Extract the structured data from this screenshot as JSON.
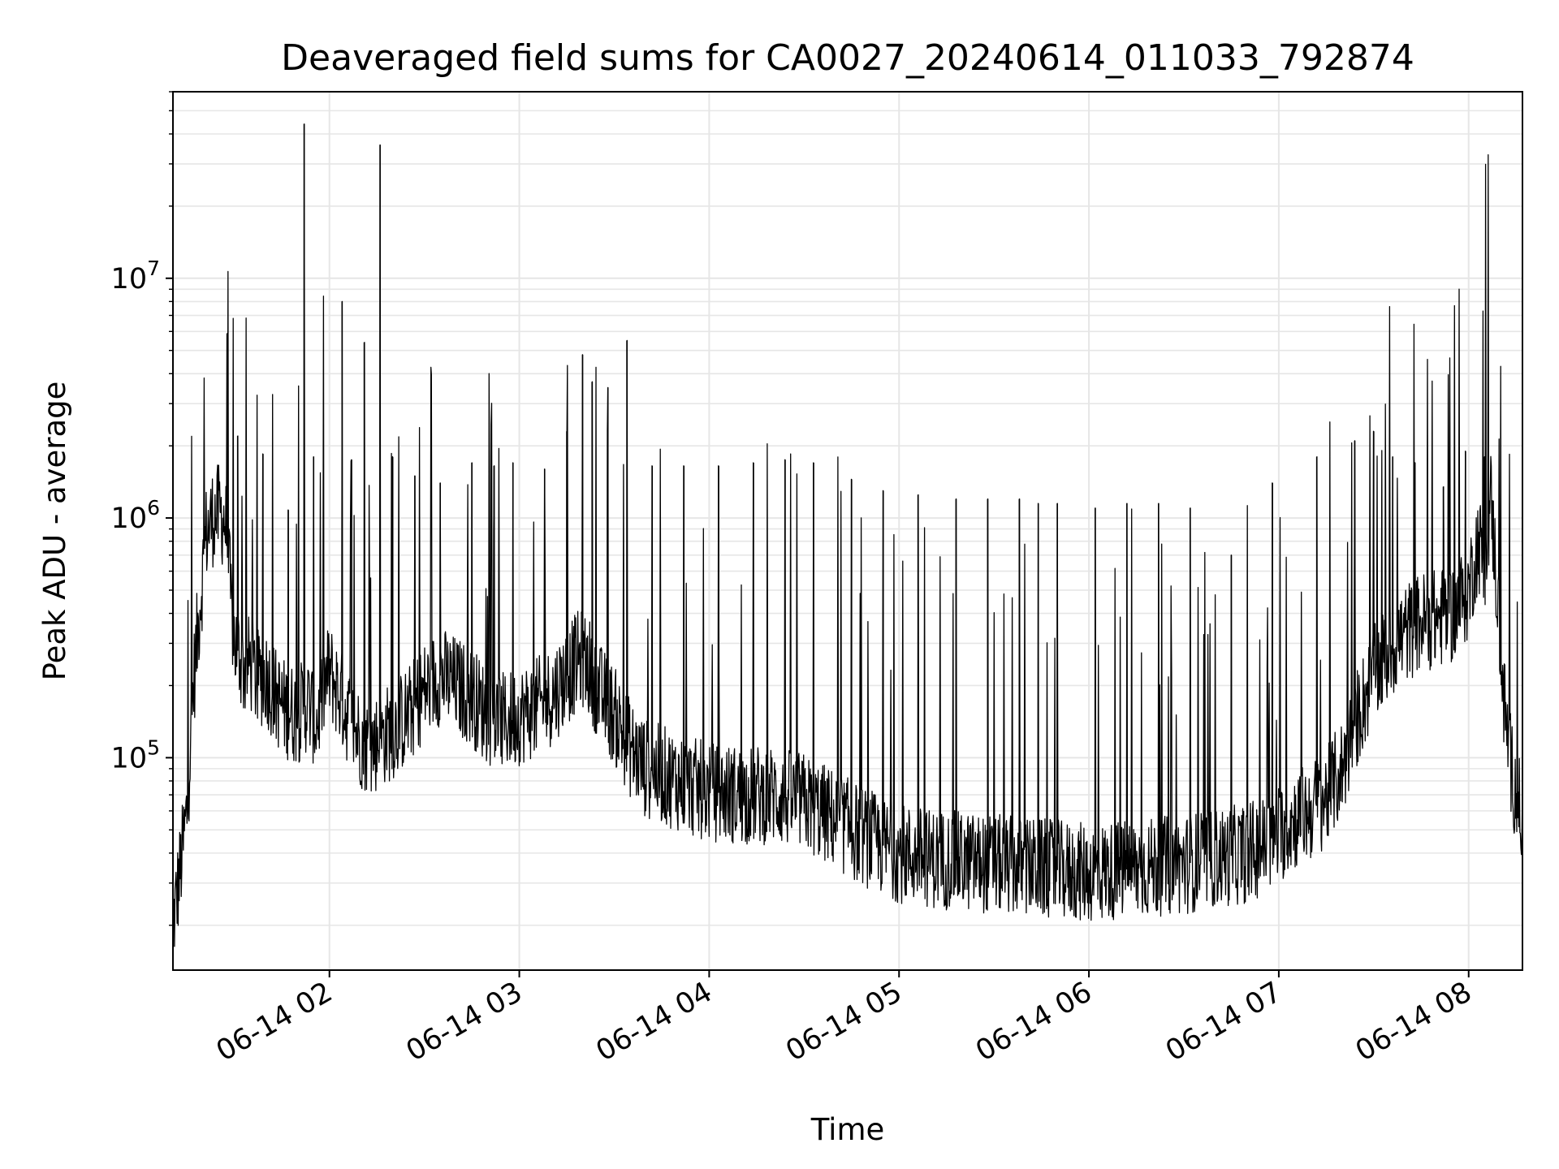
{
  "chart_data": {
    "type": "line",
    "title": "Deaveraged field sums for CA0027_20240614_011033_792874",
    "xlabel": "Time",
    "ylabel": "Peak ADU - average",
    "yscale": "log",
    "xlim": [
      "2024-06-14 01:10:33",
      "2024-06-14 08:17:00"
    ],
    "ylim": [
      13000,
      60000000
    ],
    "grid": true,
    "legend": "none",
    "line_color": "#000000",
    "grid_color": "#e6e6e6",
    "xticks": [
      {
        "value": "2024-06-14 02:00",
        "label": "06-14 02"
      },
      {
        "value": "2024-06-14 03:00",
        "label": "06-14 03"
      },
      {
        "value": "2024-06-14 04:00",
        "label": "06-14 04"
      },
      {
        "value": "2024-06-14 05:00",
        "label": "06-14 05"
      },
      {
        "value": "2024-06-14 06:00",
        "label": "06-14 06"
      },
      {
        "value": "2024-06-14 07:00",
        "label": "06-14 07"
      },
      {
        "value": "2024-06-14 08:00",
        "label": "06-14 08"
      }
    ],
    "yticks": [
      {
        "value": 100000,
        "base": "10",
        "exp": "5"
      },
      {
        "value": 1000000,
        "base": "10",
        "exp": "6"
      },
      {
        "value": 10000000,
        "base": "10",
        "exp": "7"
      }
    ],
    "series": [
      {
        "x": [
          "2024-06-14 01:10:33",
          "2024-06-14 01:13",
          "2024-06-14 01:15",
          "2024-06-14 01:17",
          "2024-06-14 01:19",
          "2024-06-14 01:21",
          "2024-06-14 01:23",
          "2024-06-14 01:25",
          "2024-06-14 01:27",
          "2024-06-14 01:28",
          "2024-06-14 01:29",
          "2024-06-14 01:30",
          "2024-06-14 01:32",
          "2024-06-14 01:33",
          "2024-06-14 01:35",
          "2024-06-14 01:37",
          "2024-06-14 01:40",
          "2024-06-14 01:43",
          "2024-06-14 01:46",
          "2024-06-14 01:50",
          "2024-06-14 01:53",
          "2024-06-14 01:56",
          "2024-06-14 01:58",
          "2024-06-14 02:00",
          "2024-06-14 02:02",
          "2024-06-14 02:05",
          "2024-06-14 02:08",
          "2024-06-14 02:10",
          "2024-06-14 02:13",
          "2024-06-14 02:16",
          "2024-06-14 02:20",
          "2024-06-14 02:25",
          "2024-06-14 02:30",
          "2024-06-14 02:35",
          "2024-06-14 02:40",
          "2024-06-14 02:45",
          "2024-06-14 02:50",
          "2024-06-14 02:55",
          "2024-06-14 03:00",
          "2024-06-14 03:05",
          "2024-06-14 03:10",
          "2024-06-14 03:15",
          "2024-06-14 03:18",
          "2024-06-14 03:20",
          "2024-06-14 03:22",
          "2024-06-14 03:25",
          "2024-06-14 03:30",
          "2024-06-14 03:35",
          "2024-06-14 03:40",
          "2024-06-14 03:45",
          "2024-06-14 03:50",
          "2024-06-14 03:55",
          "2024-06-14 04:00",
          "2024-06-14 04:10",
          "2024-06-14 04:20",
          "2024-06-14 04:30",
          "2024-06-14 04:35",
          "2024-06-14 04:40",
          "2024-06-14 04:45",
          "2024-06-14 04:50",
          "2024-06-14 04:55",
          "2024-06-14 05:00",
          "2024-06-14 05:10",
          "2024-06-14 05:20",
          "2024-06-14 05:30",
          "2024-06-14 05:40",
          "2024-06-14 05:50",
          "2024-06-14 06:00",
          "2024-06-14 06:10",
          "2024-06-14 06:20",
          "2024-06-14 06:30",
          "2024-06-14 06:40",
          "2024-06-14 06:50",
          "2024-06-14 06:55",
          "2024-06-14 07:00",
          "2024-06-14 07:05",
          "2024-06-14 07:10",
          "2024-06-14 07:15",
          "2024-06-14 07:20",
          "2024-06-14 07:25",
          "2024-06-14 07:30",
          "2024-06-14 07:35",
          "2024-06-14 07:40",
          "2024-06-14 07:45",
          "2024-06-14 07:50",
          "2024-06-14 07:55",
          "2024-06-14 08:00",
          "2024-06-14 08:03",
          "2024-06-14 08:05",
          "2024-06-14 08:07",
          "2024-06-14 08:09",
          "2024-06-14 08:11",
          "2024-06-14 08:13",
          "2024-06-14 08:15",
          "2024-06-14 08:17"
        ],
        "values": [
          20000,
          35000,
          60000,
          200000,
          420000,
          850000,
          1000000,
          1050000,
          980000,
          700000,
          420000,
          300000,
          260000,
          230000,
          250000,
          210000,
          220000,
          180000,
          160000,
          150000,
          170000,
          140000,
          190000,
          230000,
          200000,
          160000,
          130000,
          120000,
          110000,
          120000,
          130000,
          150000,
          190000,
          220000,
          200000,
          180000,
          150000,
          140000,
          150000,
          160000,
          180000,
          220000,
          250000,
          260000,
          240000,
          190000,
          150000,
          110000,
          90000,
          85000,
          80000,
          75000,
          72000,
          70000,
          70000,
          65000,
          60000,
          55000,
          50000,
          46000,
          43000,
          40000,
          38000,
          37000,
          36000,
          35000,
          34000,
          33000,
          34000,
          35000,
          36000,
          38000,
          40000,
          43000,
          48000,
          55000,
          60000,
          68000,
          90000,
          150000,
          220000,
          280000,
          330000,
          370000,
          380000,
          400000,
          500000,
          800000,
          650000,
          1200000,
          500000,
          180000,
          100000,
          70000,
          55000
        ]
      },
      {
        "name": "",
        "kind": "spikes",
        "x": [
          "2024-06-14 01:31",
          "2024-06-14 01:39",
          "2024-06-14 01:47",
          "2024-06-14 01:52",
          "2024-06-14 01:55",
          "2024-06-14 02:04",
          "2024-06-14 02:07",
          "2024-06-14 02:11",
          "2024-06-14 02:16",
          "2024-06-14 02:20",
          "2024-06-14 02:27",
          "2024-06-14 02:35",
          "2024-06-14 02:45",
          "2024-06-14 02:52",
          "2024-06-14 02:58",
          "2024-06-14 03:08",
          "2024-06-14 03:15",
          "2024-06-14 03:20",
          "2024-06-14 03:23",
          "2024-06-14 03:28",
          "2024-06-14 03:34",
          "2024-06-14 03:42",
          "2024-06-14 03:52",
          "2024-06-14 04:03",
          "2024-06-14 04:14",
          "2024-06-14 04:24",
          "2024-06-14 04:33",
          "2024-06-14 04:45",
          "2024-06-14 04:55",
          "2024-06-14 05:06",
          "2024-06-14 05:18",
          "2024-06-14 05:28",
          "2024-06-14 05:38",
          "2024-06-14 05:44",
          "2024-06-14 05:50",
          "2024-06-14 06:02",
          "2024-06-14 06:12",
          "2024-06-14 06:22",
          "2024-06-14 06:32",
          "2024-06-14 06:45",
          "2024-06-14 06:58",
          "2024-06-14 07:12",
          "2024-06-14 07:24",
          "2024-06-14 07:30",
          "2024-06-14 07:36",
          "2024-06-14 07:43",
          "2024-06-14 07:52",
          "2024-06-14 07:59",
          "2024-06-14 08:05"
        ],
        "values": [
          2200000,
          1850000,
          1080000,
          44000000,
          1800000,
          8000000,
          1750000,
          5400000,
          36000000,
          1800000,
          1500000,
          1400000,
          1700000,
          1650000,
          1700000,
          1600000,
          2300000,
          4800000,
          3700000,
          3500000,
          5500000,
          1650000,
          1650000,
          1650000,
          1700000,
          1750000,
          1700000,
          1450000,
          1300000,
          1250000,
          1200000,
          1200000,
          1200000,
          1150000,
          1150000,
          1100000,
          1150000,
          1150000,
          1100000,
          700000,
          1400000,
          1800000,
          2100000,
          2300000,
          1800000,
          1700000,
          1350000,
          1900000,
          1800000
        ]
      }
    ]
  }
}
